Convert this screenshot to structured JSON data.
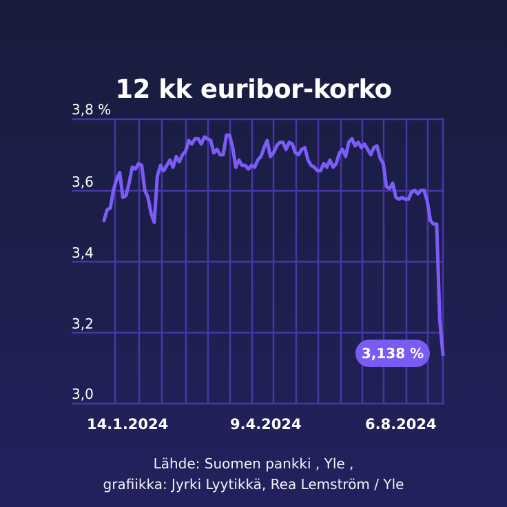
{
  "title": "12 k k euribor-korko",
  "header": {
    "title": "12 kk euribor-korko"
  },
  "y_axis": {
    "labels": [
      "3,8 %",
      "3,6",
      "3,4",
      "3,2",
      "3,0"
    ]
  },
  "x_axis": {
    "labels": [
      "14.1.2024",
      "9.4.2024",
      "6.8.2024"
    ]
  },
  "badge": {
    "label": "3,138 %"
  },
  "source": {
    "line1": "Lähde: Suomen pankki , Yle ,",
    "line2": "grafiikka: Jyrki Lyytikkä, Rea Lemström / Yle"
  },
  "colors": {
    "line": "#7b5cf7",
    "grid": "#4a35a6",
    "badge": "#7a5cf4",
    "background": "#1b1e45"
  },
  "chart_data": {
    "type": "line",
    "title": "12 kk euribor-korko",
    "xlabel": "",
    "ylabel": "%",
    "ylim": [
      3.0,
      3.8
    ],
    "yticks": [
      3.0,
      3.2,
      3.4,
      3.6,
      3.8
    ],
    "xtick_labels": [
      "14.1.2024",
      "9.4.2024",
      "6.8.2024"
    ],
    "grid": true,
    "legend": null,
    "annotations": [
      {
        "text": "3,138 %",
        "at": "last point"
      }
    ],
    "series": [
      {
        "name": "12 kk euribor",
        "values": [
          3.515,
          3.545,
          3.55,
          3.6,
          3.63,
          3.65,
          3.58,
          3.585,
          3.62,
          3.665,
          3.66,
          3.675,
          3.67,
          3.6,
          3.58,
          3.535,
          3.51,
          3.64,
          3.67,
          3.655,
          3.67,
          3.685,
          3.665,
          3.695,
          3.68,
          3.7,
          3.71,
          3.74,
          3.73,
          3.745,
          3.745,
          3.73,
          3.75,
          3.745,
          3.74,
          3.705,
          3.715,
          3.7,
          3.7,
          3.755,
          3.755,
          3.72,
          3.665,
          3.685,
          3.67,
          3.67,
          3.66,
          3.67,
          3.665,
          3.685,
          3.695,
          3.72,
          3.74,
          3.695,
          3.705,
          3.725,
          3.735,
          3.735,
          3.715,
          3.735,
          3.73,
          3.705,
          3.7,
          3.715,
          3.72,
          3.685,
          3.67,
          3.665,
          3.655,
          3.655,
          3.675,
          3.665,
          3.685,
          3.665,
          3.675,
          3.705,
          3.715,
          3.695,
          3.735,
          3.745,
          3.725,
          3.735,
          3.72,
          3.73,
          3.715,
          3.7,
          3.72,
          3.725,
          3.69,
          3.675,
          3.61,
          3.605,
          3.62,
          3.58,
          3.575,
          3.58,
          3.575,
          3.575,
          3.595,
          3.6,
          3.59,
          3.6,
          3.6,
          3.57,
          3.515,
          3.505,
          3.505,
          3.235,
          3.138
        ]
      }
    ]
  }
}
